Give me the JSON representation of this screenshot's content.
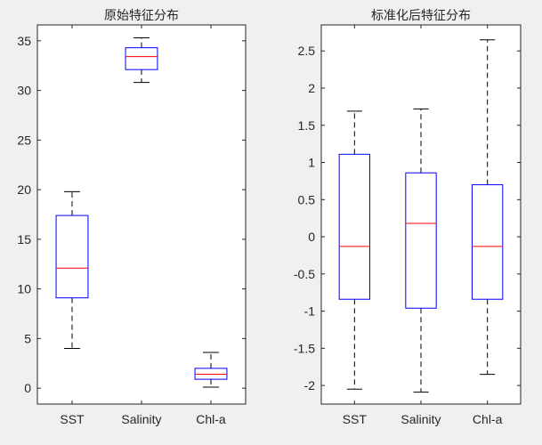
{
  "chart_data": [
    {
      "type": "box",
      "title": "原始特征分布",
      "categories": [
        "SST",
        "Salinity",
        "Chl-a"
      ],
      "ylim": [
        -1.6,
        36.6
      ],
      "yticks": [
        0,
        5,
        10,
        15,
        20,
        25,
        30,
        35
      ],
      "ytick_labels": [
        "0",
        "5",
        "10",
        "15",
        "20",
        "25",
        "30",
        "35"
      ],
      "boxes": [
        {
          "name": "SST",
          "min": 4.0,
          "q1": 9.1,
          "median": 12.1,
          "q3": 17.4,
          "max": 19.8
        },
        {
          "name": "Salinity",
          "min": 30.8,
          "q1": 32.1,
          "median": 33.4,
          "q3": 34.3,
          "max": 35.3
        },
        {
          "name": "Chl-a",
          "min": 0.1,
          "q1": 0.9,
          "median": 1.4,
          "q3": 2.0,
          "max": 3.6
        }
      ],
      "colors": {
        "box": "#0000ff",
        "median": "#ff0000",
        "whisker": "#000000"
      },
      "grid": false
    },
    {
      "type": "box",
      "title": "标准化后特征分布",
      "categories": [
        "SST",
        "Salinity",
        "Chl-a"
      ],
      "ylim": [
        -2.25,
        2.85
      ],
      "yticks": [
        -2,
        -1.5,
        -1,
        -0.5,
        0,
        0.5,
        1,
        1.5,
        2,
        2.5
      ],
      "ytick_labels": [
        "-2",
        "-1.5",
        "-1",
        "-0.5",
        "0",
        "0.5",
        "1",
        "1.5",
        "2",
        "2.5"
      ],
      "boxes": [
        {
          "name": "SST",
          "min": -2.05,
          "q1": -0.84,
          "median": -0.13,
          "q3": 1.11,
          "max": 1.69
        },
        {
          "name": "Salinity",
          "min": -2.09,
          "q1": -0.96,
          "median": 0.18,
          "q3": 0.86,
          "max": 1.72
        },
        {
          "name": "Chl-a",
          "min": -1.85,
          "q1": -0.84,
          "median": -0.13,
          "q3": 0.7,
          "max": 2.65
        }
      ],
      "colors": {
        "box": "#0000ff",
        "median": "#ff0000",
        "whisker": "#000000"
      },
      "grid": false
    }
  ]
}
